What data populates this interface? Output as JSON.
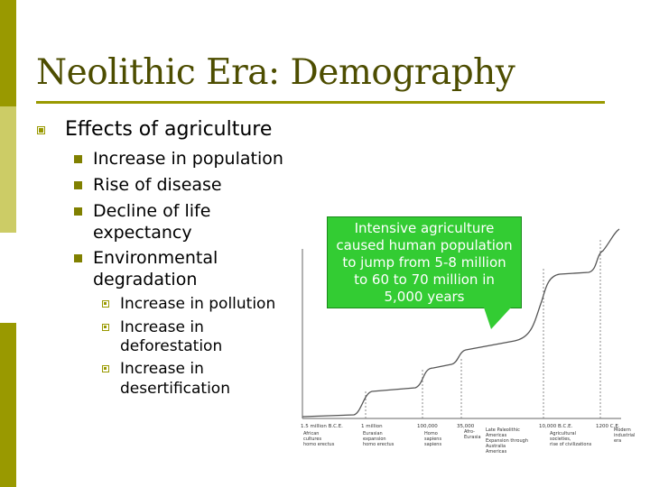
{
  "slide": {
    "title": "Neolithic Era: Demography",
    "level1": "Effects of agriculture",
    "level2": [
      {
        "lines": [
          "Increase in population"
        ]
      },
      {
        "lines": [
          "Rise of disease"
        ]
      },
      {
        "lines": [
          "Decline of life",
          "expectancy"
        ]
      },
      {
        "lines": [
          "Environmental",
          "degradation"
        ]
      }
    ],
    "level3": [
      {
        "lines": [
          "Increase in pollution"
        ]
      },
      {
        "lines": [
          "Increase in",
          "deforestation"
        ]
      },
      {
        "lines": [
          "Increase in",
          "desertification"
        ]
      }
    ]
  },
  "callout": {
    "lines": [
      "Intensive agriculture",
      "caused human population",
      "to jump from 5-8 million",
      "to 60 to 70 million in",
      "5,000 years"
    ]
  },
  "figure": {
    "tick_labels": [
      "1.5 million B.C.E.",
      "1 million",
      "100,000",
      "35,000",
      "10,000 B.C.E.",
      "1200 C.E."
    ],
    "era_labels": [
      [
        "African",
        "cultures",
        "homo erectus"
      ],
      [
        "Eurasian",
        "expansion",
        "homo erectus"
      ],
      [
        "Homo",
        "sapiens",
        "sapiens"
      ],
      [
        "Afro-",
        "Eurasia"
      ],
      [
        "Late Paleolithic",
        "Americas",
        "Expansion through",
        "Australia",
        "Americas"
      ],
      [
        "Agricultural",
        "societies,",
        "rise of civilizations"
      ],
      [
        "Modern",
        "industrial",
        "era"
      ]
    ],
    "colors": {
      "curve": "#555555",
      "callout": "#33cc33"
    }
  }
}
